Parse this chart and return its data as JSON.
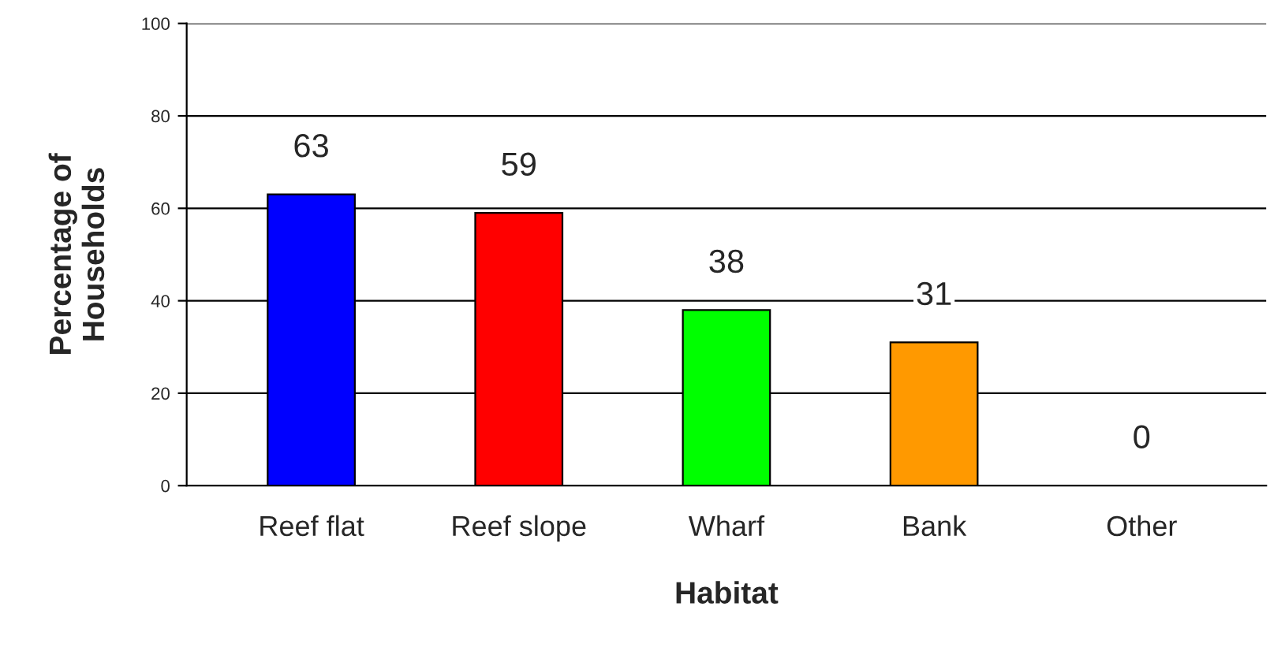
{
  "chart_data": {
    "type": "bar",
    "xlabel": "Habitat",
    "ylabel": "Percentage of\nHouseholds",
    "categories": [
      "Reef flat",
      "Reef slope",
      "Wharf",
      "Bank",
      "Other"
    ],
    "values": [
      63,
      59,
      38,
      31,
      0
    ],
    "colors": [
      "#0000ff",
      "#ff0000",
      "#00ff00",
      "#ff9900",
      "#ffffff"
    ],
    "ylim": [
      0,
      100
    ],
    "yticks": [
      0,
      20,
      40,
      60,
      80,
      100
    ],
    "grid": "y",
    "data_labels": true
  }
}
